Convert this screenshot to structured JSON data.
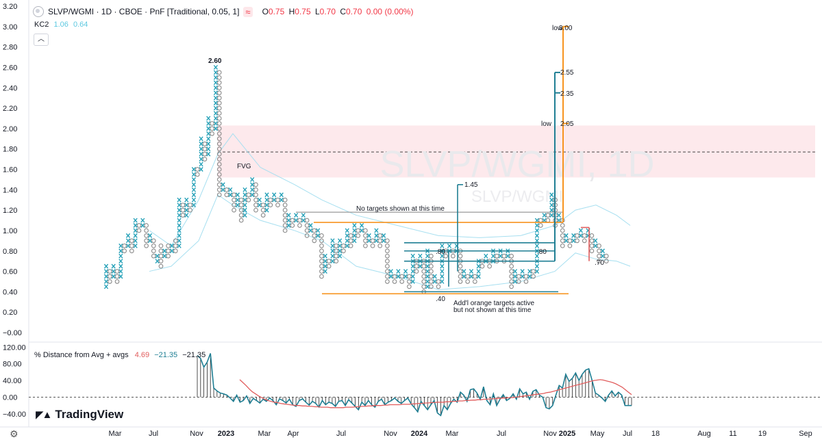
{
  "header": {
    "symbol_title": "SLVP/WGMI · 1D · CBOE · PnF [Traditional, 0.05, 1]",
    "ohlc": [
      {
        "k": "O",
        "v": "0.75"
      },
      {
        "k": "H",
        "v": "0.75"
      },
      {
        "k": "L",
        "v": "0.70"
      },
      {
        "k": "C",
        "v": "0.70"
      },
      {
        "k": "",
        "v": "0.00 (0.00%)"
      }
    ],
    "indicator": {
      "name": "KC2",
      "upper": "1.06",
      "lower": "0.64"
    },
    "collapse_icon": "chevron-up-icon"
  },
  "watermark": {
    "main": "SLVP/WGMI, 1D",
    "sub": "SLVP/WGMI"
  },
  "lower_pane": {
    "title": "% Distance from Avg + avgs",
    "v1": "4.69",
    "v2": "−21.35",
    "v3": "−21.35"
  },
  "branding": {
    "logo": "TradingView",
    "settings_icon": "settings-icon"
  },
  "colors": {
    "x_mark": "#26a1b8",
    "o_mark": "#8a8a8a",
    "orange": "#f7931e",
    "teal_line": "#1e7e93",
    "red": "#e15c5c",
    "fvg_band": "#fde7ea",
    "kc": "#a6dff0"
  },
  "chart_data": {
    "type": "pnf",
    "box_size": 0.05,
    "y_axis": {
      "min": 0,
      "max": 3.2,
      "ticks": [
        "3.20",
        "3.00",
        "2.80",
        "2.60",
        "2.40",
        "2.20",
        "2.00",
        "1.80",
        "1.60",
        "1.40",
        "1.20",
        "1.00",
        "0.80",
        "0.60",
        "0.40",
        "0.20",
        "−0.00"
      ]
    },
    "x_axis": {
      "ticks": [
        "Mar",
        "Jul",
        "Nov",
        "2023",
        "Mar",
        "Apr",
        "Jul",
        "Nov",
        "2024",
        "Mar",
        "Jul",
        "Nov",
        "2025",
        "May",
        "Jul",
        "18",
        "Aug",
        "11",
        "19",
        "Sep"
      ]
    },
    "columns": [
      [
        "X",
        0.45,
        0.65
      ],
      [
        "O",
        0.5,
        0.6
      ],
      [
        "X",
        0.55,
        0.65
      ],
      [
        "O",
        0.5,
        0.6
      ],
      [
        "X",
        0.55,
        0.85
      ],
      [
        "O",
        0.8,
        0.85
      ],
      [
        "X",
        0.85,
        0.95
      ],
      [
        "O",
        0.8,
        0.9
      ],
      [
        "X",
        0.85,
        1.1
      ],
      [
        "O",
        1.0,
        1.05
      ],
      [
        "X",
        1.05,
        1.1
      ],
      [
        "O",
        0.85,
        1.05
      ],
      [
        "X",
        0.9,
        0.95
      ],
      [
        "O",
        0.75,
        0.9
      ],
      [
        "X",
        0.7,
        0.75
      ],
      [
        "O",
        0.65,
        0.85
      ],
      [
        "X",
        0.75,
        0.8
      ],
      [
        "O",
        0.75,
        0.85
      ],
      [
        "X",
        0.8,
        0.85
      ],
      [
        "O",
        0.8,
        0.9
      ],
      [
        "X",
        0.85,
        1.3
      ],
      [
        "O",
        1.15,
        1.25
      ],
      [
        "X",
        1.15,
        1.3
      ],
      [
        "O",
        1.2,
        1.25
      ],
      [
        "X",
        1.25,
        1.6
      ],
      [
        "O",
        1.55,
        1.6
      ],
      [
        "X",
        1.6,
        1.9
      ],
      [
        "O",
        1.7,
        1.85
      ],
      [
        "X",
        1.75,
        2.1
      ],
      [
        "O",
        1.95,
        2.05
      ],
      [
        "X",
        2.0,
        2.6
      ],
      [
        "O",
        1.35,
        2.55
      ],
      [
        "X",
        1.4,
        1.45
      ],
      [
        "O",
        1.35,
        1.4
      ],
      [
        "X",
        1.35,
        1.4
      ],
      [
        "O",
        1.2,
        1.35
      ],
      [
        "X",
        1.25,
        1.35
      ],
      [
        "O",
        1.1,
        1.3
      ],
      [
        "X",
        1.15,
        1.4
      ],
      [
        "O",
        1.3,
        1.35
      ],
      [
        "X",
        1.35,
        1.5
      ],
      [
        "O",
        1.2,
        1.45
      ],
      [
        "X",
        1.25,
        1.3
      ],
      [
        "O",
        1.15,
        1.25
      ],
      [
        "X",
        1.2,
        1.35
      ],
      [
        "O",
        1.25,
        1.3
      ],
      [
        "X",
        1.3,
        1.35
      ],
      [
        "O",
        1.25,
        1.3
      ],
      [
        "X",
        1.3,
        1.35
      ],
      [
        "O",
        1.0,
        1.3
      ],
      [
        "X",
        1.05,
        1.15
      ],
      [
        "O",
        1.05,
        1.1
      ],
      [
        "X",
        1.1,
        1.15
      ],
      [
        "O",
        1.05,
        1.1
      ],
      [
        "X",
        1.1,
        1.15
      ],
      [
        "O",
        0.95,
        1.1
      ],
      [
        "X",
        1.0,
        1.05
      ],
      [
        "O",
        0.9,
        1.0
      ],
      [
        "X",
        0.95,
        1.0
      ],
      [
        "O",
        0.55,
        0.95
      ],
      [
        "X",
        0.6,
        0.75
      ],
      [
        "O",
        0.65,
        0.7
      ],
      [
        "X",
        0.7,
        0.9
      ],
      [
        "O",
        0.7,
        0.85
      ],
      [
        "X",
        0.75,
        0.9
      ],
      [
        "O",
        0.8,
        0.85
      ],
      [
        "X",
        0.85,
        1.0
      ],
      [
        "O",
        0.85,
        0.95
      ],
      [
        "X",
        0.9,
        1.05
      ],
      [
        "O",
        0.95,
        1.0
      ],
      [
        "X",
        1.0,
        1.05
      ],
      [
        "O",
        0.85,
        1.0
      ],
      [
        "X",
        0.9,
        0.95
      ],
      [
        "O",
        0.85,
        0.9
      ],
      [
        "X",
        0.9,
        1.0
      ],
      [
        "O",
        0.85,
        0.95
      ],
      [
        "X",
        0.9,
        0.95
      ],
      [
        "O",
        0.5,
        0.9
      ],
      [
        "X",
        0.55,
        0.6
      ],
      [
        "O",
        0.5,
        0.55
      ],
      [
        "X",
        0.55,
        0.6
      ],
      [
        "O",
        0.5,
        0.55
      ],
      [
        "X",
        0.55,
        0.6
      ],
      [
        "O",
        0.45,
        0.55
      ],
      [
        "X",
        0.5,
        0.75
      ],
      [
        "O",
        0.6,
        0.7
      ],
      [
        "X",
        0.65,
        0.75
      ],
      [
        "O",
        0.4,
        0.7
      ],
      [
        "X",
        0.45,
        0.8
      ],
      [
        "O",
        0.45,
        0.75
      ],
      [
        "X",
        0.5,
        0.55
      ],
      [
        "O",
        0.45,
        0.5
      ],
      [
        "X",
        0.5,
        0.85
      ],
      [
        "O",
        0.75,
        0.8
      ],
      [
        "X",
        0.8,
        0.85
      ],
      [
        "O",
        0.75,
        0.8
      ],
      [
        "X",
        0.8,
        0.85
      ],
      [
        "O",
        0.5,
        0.8
      ],
      [
        "X",
        0.55,
        0.6
      ],
      [
        "O",
        0.5,
        0.55
      ],
      [
        "X",
        0.55,
        0.6
      ],
      [
        "O",
        0.5,
        0.55
      ],
      [
        "X",
        0.55,
        0.7
      ],
      [
        "O",
        0.65,
        0.7
      ],
      [
        "X",
        0.7,
        0.75
      ],
      [
        "O",
        0.65,
        0.7
      ],
      [
        "X",
        0.7,
        0.8
      ],
      [
        "O",
        0.7,
        0.75
      ],
      [
        "X",
        0.75,
        0.8
      ],
      [
        "O",
        0.7,
        0.75
      ],
      [
        "X",
        0.75,
        0.8
      ],
      [
        "O",
        0.45,
        0.75
      ],
      [
        "X",
        0.5,
        0.6
      ],
      [
        "O",
        0.5,
        0.55
      ],
      [
        "X",
        0.55,
        0.6
      ],
      [
        "O",
        0.5,
        0.55
      ],
      [
        "X",
        0.55,
        0.6
      ],
      [
        "O",
        0.55,
        0.6
      ],
      [
        "X",
        0.6,
        1.1
      ],
      [
        "O",
        1.05,
        1.1
      ],
      [
        "X",
        1.1,
        1.15
      ],
      [
        "O",
        1.1,
        1.15
      ],
      [
        "X",
        1.15,
        1.35
      ],
      [
        "O",
        1.05,
        1.3
      ],
      [
        "X",
        1.1,
        1.15
      ],
      [
        "O",
        0.85,
        1.1
      ],
      [
        "X",
        0.9,
        0.95
      ],
      [
        "O",
        0.85,
        0.9
      ],
      [
        "X",
        0.9,
        0.95
      ],
      [
        "O",
        0.9,
        0.95
      ],
      [
        "X",
        0.95,
        1.0
      ],
      [
        "O",
        0.9,
        0.95
      ],
      [
        "X",
        0.95,
        1.0
      ],
      [
        "O",
        0.8,
        0.95
      ],
      [
        "X",
        0.85,
        0.9
      ],
      [
        "O",
        0.7,
        0.85
      ],
      [
        "X",
        0.75,
        0.8
      ],
      [
        "O",
        0.7,
        0.75
      ]
    ],
    "annotations": [
      {
        "text": "2.60",
        "y": 2.6
      },
      {
        "text": "FVG",
        "y": 1.62
      },
      {
        "text": "No targets shown at this time",
        "y": 1.2
      },
      {
        "text": "1.45",
        "y": 1.45
      },
      {
        "text": ".80",
        "y": 0.8
      },
      {
        "text": ".80",
        "y": 0.8
      },
      {
        "text": ".40",
        "y": 0.4
      },
      {
        "text": "Add'l orange targets active",
        "y": 0.34
      },
      {
        "text": "but not shown at this time",
        "y": 0.3
      },
      {
        "text": "low",
        "y": 3.0
      },
      {
        "text": "3.00",
        "y": 3.0
      },
      {
        "text": "2.55",
        "y": 2.55
      },
      {
        "text": "2.35",
        "y": 2.35
      },
      {
        "text": "low",
        "y": 2.05
      },
      {
        "text": "2.05",
        "y": 2.05
      },
      {
        "text": ".70",
        "y": 0.7
      }
    ],
    "fvg_zone": [
      1.52,
      2.03
    ],
    "fvg_midline": 1.77,
    "lower_pane_axis": {
      "ticks": [
        "120.00",
        "80.00",
        "40.00",
        "0.00",
        "−40.00"
      ],
      "min": -40,
      "max": 120
    },
    "lower_pane_series": [
      {
        "values": [
          100,
          93,
          72,
          84,
          105,
          22,
          15,
          10,
          8,
          5,
          -2,
          -10,
          5,
          -12,
          -8,
          3,
          -15,
          -3,
          -8,
          -14,
          -5,
          -10,
          -2,
          -8,
          -18,
          -4,
          -8,
          -14,
          -5,
          -18,
          -22,
          -8,
          -4,
          -12,
          -19,
          -10,
          -15,
          -24,
          -8,
          -18,
          -12,
          -15,
          -22,
          -10,
          -8,
          -20,
          -6,
          -14,
          -22,
          -30,
          -12,
          -20,
          -8,
          -18,
          -24,
          -10,
          -5,
          -18,
          -12,
          -8,
          -2,
          -10,
          -15,
          -8,
          -2,
          -16,
          -25,
          -35,
          -10,
          -20,
          -30,
          -18,
          -8,
          -38,
          -44,
          -20,
          -30,
          -15,
          -5,
          -12,
          12,
          5,
          -10,
          18,
          20,
          10,
          -5,
          25,
          -8,
          -18,
          8,
          -20,
          -5,
          6,
          -8,
          -3,
          8,
          -5,
          20,
          8,
          12,
          -5,
          14,
          18,
          5,
          0,
          -25,
          -28,
          -20,
          5,
          28,
          22,
          55,
          38,
          45,
          58,
          40,
          55,
          65,
          68,
          40,
          10,
          5,
          -2,
          -10,
          5,
          15,
          3,
          12,
          5,
          -20,
          -20,
          -20
        ]
      },
      {
        "values": [
          42,
          35,
          28,
          20,
          13,
          8,
          3,
          -1,
          -5,
          -8,
          -10,
          -12,
          -13,
          -15,
          -16,
          -17,
          -18,
          -19,
          -20,
          -20,
          -21,
          -21,
          -22,
          -22,
          -23,
          -23,
          -24,
          -24,
          -24,
          -25,
          -25,
          -25,
          -25,
          -25,
          -24,
          -24,
          -24,
          -23,
          -23,
          -22,
          -22,
          -21,
          -21,
          -20,
          -20,
          -20,
          -19,
          -19,
          -18,
          -18,
          -18,
          -18,
          -17,
          -17,
          -17,
          -16,
          -16,
          -15,
          -15,
          -14,
          -14,
          -13,
          -13,
          -12,
          -12,
          -12,
          -11,
          -11,
          -10,
          -10,
          -9,
          -9,
          -8,
          -8,
          -7,
          -7,
          -6,
          -6,
          -5,
          -5,
          -4,
          -4,
          -3,
          -3,
          -2,
          -2,
          -1,
          -1,
          0,
          1,
          2,
          3,
          4,
          5,
          6,
          7,
          8,
          9,
          11,
          12,
          14,
          16,
          18,
          20,
          22,
          24,
          26,
          28,
          30,
          32,
          34,
          36,
          38,
          40,
          41,
          42,
          41,
          39,
          37,
          35,
          32,
          28,
          24,
          18,
          12,
          6
        ]
      }
    ]
  }
}
